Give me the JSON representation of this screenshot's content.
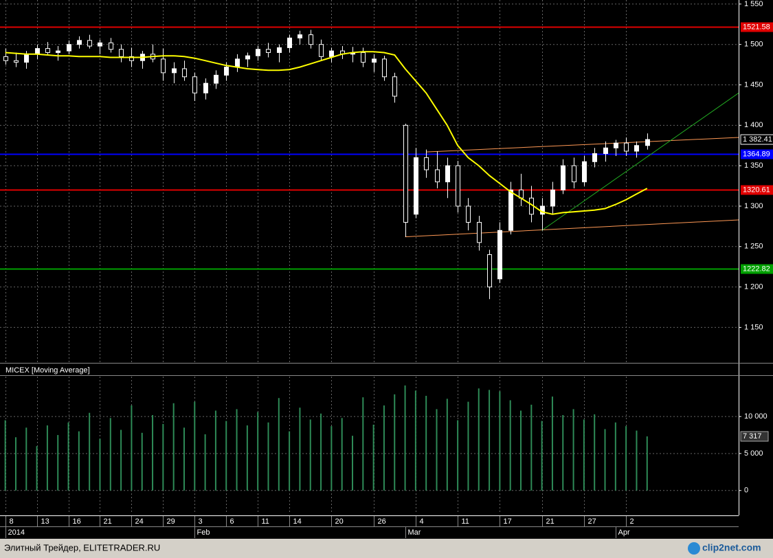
{
  "chart_data": {
    "type": "candlestick",
    "indicator_title": "MICEX [Moving Average]",
    "footer": "Элитный Трейдер, ELITETRADER.RU",
    "watermark": "clip2net.com",
    "categories": [
      "8",
      null,
      null,
      "13",
      null,
      null,
      "16",
      null,
      null,
      "21",
      null,
      null,
      "24",
      null,
      null,
      "29",
      null,
      null,
      "3",
      null,
      null,
      "6",
      null,
      null,
      "11",
      null,
      null,
      "14",
      null,
      null,
      null,
      "20",
      null,
      null,
      null,
      "26",
      null,
      null,
      null,
      "4",
      null,
      null,
      null,
      "11",
      null,
      null,
      null,
      "17",
      null,
      null,
      null,
      "21",
      null,
      null,
      null,
      "27",
      null,
      null,
      null,
      "2",
      null,
      null
    ],
    "months": [
      "2014",
      null,
      null,
      null,
      null,
      null,
      null,
      null,
      null,
      null,
      null,
      null,
      null,
      null,
      null,
      null,
      null,
      null,
      "Feb",
      null,
      null,
      null,
      null,
      null,
      null,
      null,
      null,
      null,
      null,
      null,
      null,
      null,
      null,
      null,
      null,
      null,
      null,
      null,
      "Mar",
      null,
      null,
      null,
      null,
      null,
      null,
      null,
      null,
      null,
      null,
      null,
      null,
      null,
      null,
      null,
      null,
      null,
      null,
      null,
      "Apr",
      null,
      null,
      null
    ],
    "open": [
      1485,
      1480,
      1478,
      1488,
      1495,
      1490,
      1492,
      1500,
      1505,
      1498,
      1502,
      1494,
      1485,
      1480,
      1488,
      1482,
      1465,
      1470,
      1460,
      1440,
      1452,
      1462,
      1472,
      1482,
      1486,
      1494,
      1490,
      1496,
      1508,
      1512,
      1500,
      1485,
      1492,
      1488,
      1490,
      1478,
      1482,
      1460,
      1400,
      1290,
      1360,
      1345,
      1330,
      1350,
      1300,
      1280,
      1240,
      1210,
      1270,
      1320,
      1310,
      1290,
      1300,
      1320,
      1350,
      1330,
      1355,
      1365,
      1372,
      1378,
      1368,
      1375
    ],
    "high": [
      1495,
      1490,
      1492,
      1500,
      1503,
      1498,
      1505,
      1510,
      1512,
      1506,
      1508,
      1500,
      1496,
      1492,
      1500,
      1495,
      1478,
      1480,
      1465,
      1458,
      1468,
      1478,
      1488,
      1490,
      1498,
      1502,
      1500,
      1512,
      1517,
      1518,
      1506,
      1496,
      1498,
      1497,
      1496,
      1488,
      1486,
      1465,
      1402,
      1372,
      1370,
      1368,
      1360,
      1356,
      1310,
      1288,
      1246,
      1280,
      1330,
      1340,
      1325,
      1310,
      1330,
      1358,
      1360,
      1362,
      1372,
      1380,
      1382,
      1385,
      1380,
      1390
    ],
    "low": [
      1475,
      1472,
      1470,
      1482,
      1488,
      1480,
      1488,
      1495,
      1495,
      1488,
      1490,
      1478,
      1472,
      1470,
      1478,
      1455,
      1452,
      1455,
      1430,
      1432,
      1445,
      1455,
      1466,
      1472,
      1480,
      1484,
      1478,
      1490,
      1500,
      1495,
      1480,
      1478,
      1482,
      1478,
      1472,
      1466,
      1455,
      1428,
      1262,
      1285,
      1335,
      1322,
      1310,
      1292,
      1270,
      1245,
      1185,
      1205,
      1265,
      1300,
      1280,
      1270,
      1290,
      1315,
      1322,
      1325,
      1348,
      1355,
      1362,
      1362,
      1360,
      1370
    ],
    "close": [
      1480,
      1478,
      1488,
      1495,
      1490,
      1492,
      1500,
      1505,
      1498,
      1502,
      1494,
      1485,
      1480,
      1488,
      1482,
      1465,
      1470,
      1460,
      1440,
      1452,
      1462,
      1472,
      1482,
      1486,
      1494,
      1490,
      1496,
      1508,
      1512,
      1500,
      1485,
      1492,
      1488,
      1490,
      1478,
      1482,
      1460,
      1436,
      1280,
      1360,
      1345,
      1330,
      1350,
      1300,
      1280,
      1255,
      1200,
      1270,
      1320,
      1310,
      1290,
      1300,
      1320,
      1350,
      1330,
      1355,
      1365,
      1372,
      1378,
      1368,
      1375,
      1382.41
    ],
    "close_value_labels": [
      null,
      null,
      null,
      null,
      null,
      null,
      null,
      null,
      null,
      null,
      null,
      null,
      null,
      null,
      null,
      null,
      null,
      null,
      null,
      null,
      null,
      null,
      null,
      null,
      null,
      null,
      null,
      null,
      null,
      null,
      null,
      null,
      null,
      null,
      null,
      null,
      null,
      null,
      null,
      null,
      null,
      null,
      null,
      null,
      null,
      null,
      null,
      null,
      null,
      null,
      null,
      null,
      null,
      null,
      null,
      null,
      null,
      null,
      null,
      null,
      null,
      "1 382.41"
    ],
    "moving_average": {
      "color": "#ffff00",
      "values": [
        1490,
        1489,
        1488,
        1488,
        1487,
        1486,
        1486,
        1485,
        1485,
        1485,
        1484,
        1484,
        1484,
        1484,
        1485,
        1486,
        1486,
        1485,
        1483,
        1480,
        1477,
        1474,
        1472,
        1470,
        1469,
        1468,
        1468,
        1469,
        1472,
        1476,
        1480,
        1484,
        1488,
        1490,
        1491,
        1491,
        1490,
        1487,
        1470,
        1455,
        1440,
        1420,
        1400,
        1375,
        1360,
        1350,
        1338,
        1328,
        1318,
        1310,
        1302,
        1293,
        1290,
        1292,
        1293,
        1294,
        1295,
        1297,
        1302,
        1308,
        1315,
        1322
      ]
    },
    "levels": [
      {
        "value": 1521.58,
        "color": "#e00000"
      },
      {
        "value": 1364.89,
        "color": "#0000ff"
      },
      {
        "value": 1320.61,
        "color": "#e00000"
      },
      {
        "value": 1222.82,
        "color": "#00a000"
      }
    ],
    "trendlines": [
      {
        "color": "#ff9955",
        "points": [
          [
            40,
            1367
          ],
          [
            69.7,
            1385
          ]
        ]
      },
      {
        "color": "#ff9955",
        "points": [
          [
            38,
            1262
          ],
          [
            69.7,
            1283
          ]
        ]
      },
      {
        "color": "#22aa22",
        "points": [
          [
            51,
            1270
          ],
          [
            69.7,
            1440
          ]
        ]
      }
    ],
    "xlim": [
      -0.5,
      69.7
    ],
    "ylim": [
      1107,
      1555
    ],
    "yticks": [
      {
        "value": 1550,
        "label": "1 550"
      },
      {
        "value": 1500,
        "label": "1 500"
      },
      {
        "value": 1450,
        "label": "1 450"
      },
      {
        "value": 1400,
        "label": "1 400"
      },
      {
        "value": 1350,
        "label": "1 350"
      },
      {
        "value": 1300,
        "label": "1 300"
      },
      {
        "value": 1250,
        "label": "1 250"
      },
      {
        "value": 1200,
        "label": "1 200"
      },
      {
        "value": 1150,
        "label": "1 150"
      }
    ],
    "volume": {
      "color": "#2e8b57",
      "values": [
        9500,
        7200,
        8500,
        6000,
        8800,
        7500,
        9200,
        8000,
        10500,
        7000,
        9800,
        8200,
        11500,
        7800,
        10200,
        9000,
        11800,
        8500,
        12000,
        7600,
        10800,
        9400,
        11000,
        8800,
        10600,
        9200,
        12500,
        8000,
        11200,
        9600,
        10400,
        8700,
        9800,
        7400,
        12600,
        8900,
        11500,
        13000,
        14200,
        13500,
        12800,
        11000,
        12400,
        9500,
        12000,
        13800,
        13600,
        13400,
        12200,
        10800,
        11600,
        9400,
        12700,
        10200,
        11000,
        9600,
        10300,
        8300,
        9200,
        8700,
        8100,
        7317
      ],
      "value_labels": [
        null,
        null,
        null,
        null,
        null,
        null,
        null,
        null,
        null,
        null,
        null,
        null,
        null,
        null,
        null,
        null,
        null,
        null,
        null,
        null,
        null,
        null,
        null,
        null,
        null,
        null,
        null,
        null,
        null,
        null,
        null,
        null,
        null,
        null,
        null,
        null,
        null,
        null,
        null,
        null,
        null,
        null,
        null,
        null,
        null,
        null,
        null,
        null,
        null,
        null,
        null,
        null,
        null,
        null,
        null,
        null,
        null,
        null,
        null,
        null,
        null,
        "7 317"
      ],
      "ylim": [
        -2900,
        15400
      ],
      "yticks": [
        {
          "value": 10000,
          "label": "10 000"
        },
        {
          "value": 5000,
          "label": "5 000"
        },
        0
      ]
    }
  }
}
